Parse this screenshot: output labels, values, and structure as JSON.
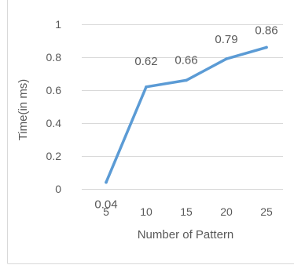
{
  "chart_data": {
    "type": "line",
    "x": [
      5,
      10,
      15,
      20,
      25
    ],
    "series": [
      {
        "values": [
          0.04,
          0.62,
          0.66,
          0.79,
          0.86
        ],
        "color": "#5B9BD5"
      }
    ],
    "data_labels": [
      "0.04",
      "0.62",
      "0.66",
      "0.79",
      "0.86"
    ],
    "xlabel": "Number of Pattern",
    "ylabel": "Time(in ms)",
    "ylim": [
      0,
      1
    ],
    "yticks": [
      "0",
      "0.2",
      "0.4",
      "0.6",
      "0.8",
      "1"
    ],
    "xticks": [
      "5",
      "10",
      "15",
      "20",
      "25"
    ],
    "grid": "horizontal",
    "gridColor": "#D9D9D9",
    "borderColor": "#D9D9D9"
  }
}
